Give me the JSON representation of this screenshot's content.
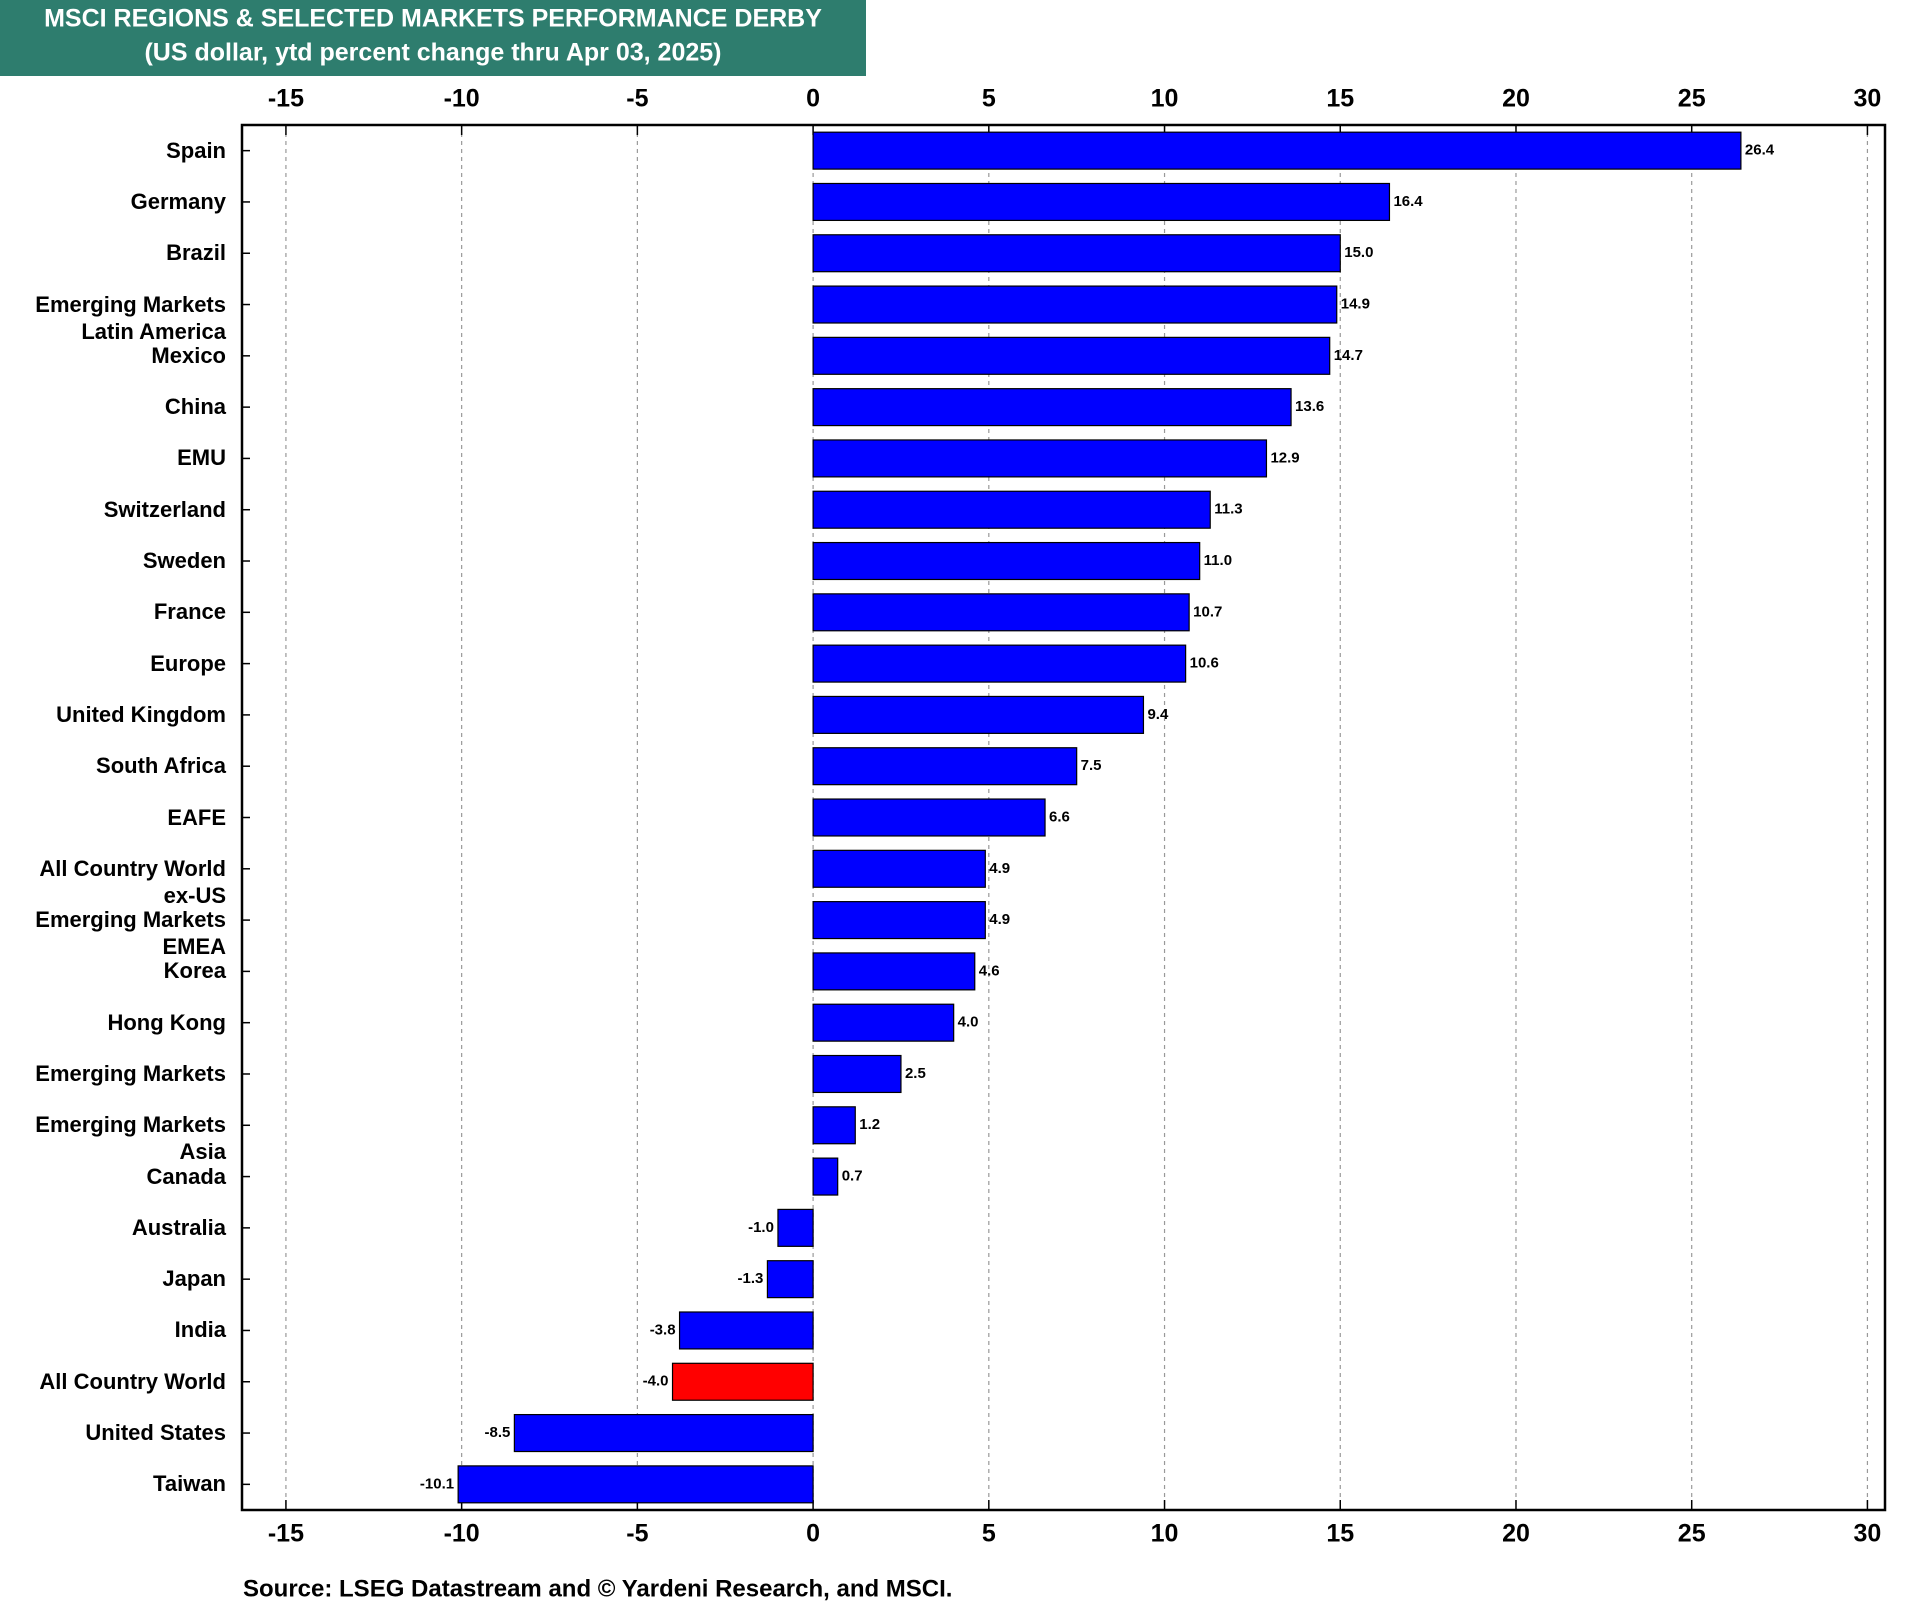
{
  "chart_data": {
    "type": "bar",
    "orientation": "horizontal",
    "title": "MSCI REGIONS & SELECTED MARKETS PERFORMANCE DERBY",
    "subtitle": "(US dollar, ytd percent change thru Apr 03, 2025)",
    "source": "Source: LSEG Datastream and © Yardeni Research, and MSCI.",
    "categories": [
      "Spain",
      "Germany",
      "Brazil",
      "Emerging Markets\nLatin America",
      "Mexico",
      "China",
      "EMU",
      "Switzerland",
      "Sweden",
      "France",
      "Europe",
      "United Kingdom",
      "South Africa",
      "EAFE",
      "All Country World\nex-US",
      "Emerging Markets\nEMEA",
      "Korea",
      "Hong Kong",
      "Emerging Markets",
      "Emerging Markets\nAsia",
      "Canada",
      "Australia",
      "Japan",
      "India",
      "All Country World",
      "United States",
      "Taiwan"
    ],
    "values": [
      26.4,
      16.4,
      15.0,
      14.9,
      14.7,
      13.6,
      12.9,
      11.3,
      11.0,
      10.7,
      10.6,
      9.4,
      7.5,
      6.6,
      4.9,
      4.9,
      4.6,
      4.0,
      2.5,
      1.2,
      0.7,
      -1.0,
      -1.3,
      -3.8,
      -4.0,
      -8.5,
      -10.1
    ],
    "value_labels": [
      "26.4",
      "16.4",
      "15.0",
      "14.9",
      "14.7",
      "13.6",
      "12.9",
      "11.3",
      "11.0",
      "10.7",
      "10.6",
      "9.4",
      "7.5",
      "6.6",
      "4.9",
      "4.9",
      "4.6",
      "4.0",
      "2.5",
      "1.2",
      "0.7",
      "-1.0",
      "-1.3",
      "-3.8",
      "-4.0",
      "-8.5",
      "-10.1"
    ],
    "colors": [
      "#0000ff",
      "#0000ff",
      "#0000ff",
      "#0000ff",
      "#0000ff",
      "#0000ff",
      "#0000ff",
      "#0000ff",
      "#0000ff",
      "#0000ff",
      "#0000ff",
      "#0000ff",
      "#0000ff",
      "#0000ff",
      "#0000ff",
      "#0000ff",
      "#0000ff",
      "#0000ff",
      "#0000ff",
      "#0000ff",
      "#0000ff",
      "#0000ff",
      "#0000ff",
      "#0000ff",
      "#ff0000",
      "#0000ff",
      "#0000ff"
    ],
    "xlim": [
      -16.25,
      30.5
    ],
    "xticks": [
      -15,
      -10,
      -5,
      0,
      5,
      10,
      15,
      20,
      25,
      30
    ],
    "grid": true
  }
}
